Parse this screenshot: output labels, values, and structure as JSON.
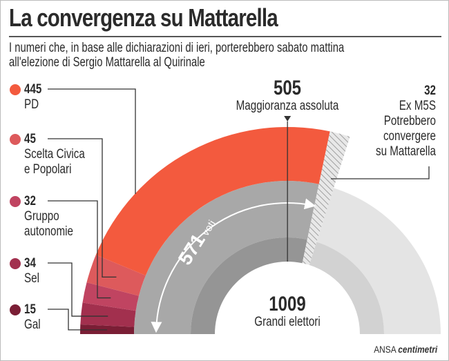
{
  "title": "La convergenza su Mattarella",
  "subtitle_line1": "I numeri che, in base alle dichiarazioni di ieri, porterebbero sabato mattina",
  "subtitle_line2": "all'elezione di Sergio Mattarella al Quirinale",
  "chart_data": {
    "type": "semi-donut",
    "total": 1009,
    "total_label": "Grandi elettori",
    "majority": 505,
    "majority_label": "Maggioranza assoluta",
    "votes": 571,
    "votes_label": "voti",
    "segments": [
      {
        "name": "Gal",
        "value": 15,
        "color": "#7a1e35"
      },
      {
        "name": "Sel",
        "value": 34,
        "color": "#a2304e"
      },
      {
        "name": "Gruppo autonomie",
        "value": 32,
        "color": "#c04461"
      },
      {
        "name": "Scelta Civica e Popolari",
        "value": 45,
        "color": "#dd5a5c"
      },
      {
        "name": "PD",
        "value": 445,
        "color": "#f35a3e"
      }
    ],
    "extra": {
      "value": 32,
      "name": "Ex M5S",
      "note": "Potrebbero convergere su Mattarella",
      "pattern": "hatched"
    },
    "colors": {
      "ring_gray": "#a8a8a8",
      "inner_gray": "#959595",
      "rest_gray": "#e4e4e4",
      "rest_inner": "#d2d2d2",
      "accent": "#e53b2c"
    }
  },
  "legend": [
    {
      "value": "445",
      "label1": "PD",
      "label2": ""
    },
    {
      "value": "45",
      "label1": "Scelta Civica",
      "label2": "e Popolari"
    },
    {
      "value": "32",
      "label1": "Gruppo",
      "label2": "autonomie"
    },
    {
      "value": "34",
      "label1": "Sel",
      "label2": ""
    },
    {
      "value": "15",
      "label1": "Gal",
      "label2": ""
    }
  ],
  "m5s": {
    "value": "32",
    "line1": "Ex M5S",
    "line2": "Potrebbero",
    "line3": "convergere",
    "line4": "su Mattarella"
  },
  "majority_value": "505",
  "total_value": "1009",
  "votes_value": "571",
  "footer": {
    "brand": "ANSA",
    "brand2": "centimetri"
  }
}
